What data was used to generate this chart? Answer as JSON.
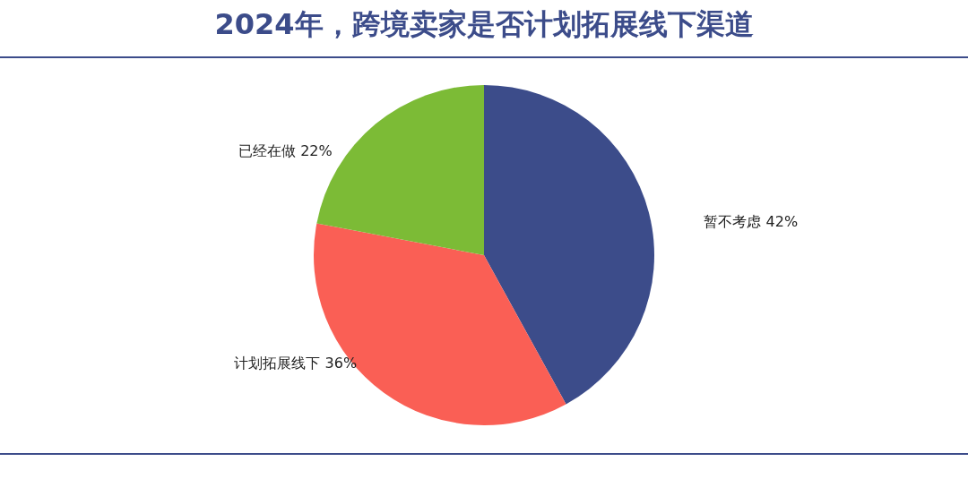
{
  "chart_data": {
    "type": "pie",
    "title": "2024年，跨境卖家是否计划拓展线下渠道",
    "categories": [
      "暂不考虑",
      "计划拓展线下",
      "已经在做"
    ],
    "values": [
      42,
      36,
      22
    ],
    "value_labels": [
      "42%",
      "36%",
      "22%"
    ],
    "colors": [
      "#3c4c8a",
      "#fa5f55",
      "#7cbb36"
    ],
    "legend": false
  }
}
